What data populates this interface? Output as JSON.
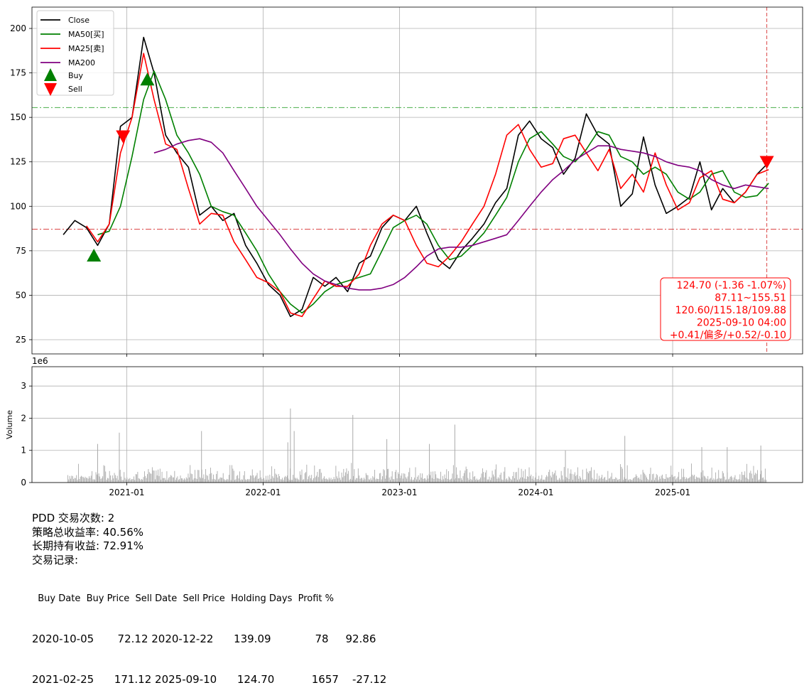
{
  "chart_data": [
    {
      "type": "line",
      "title": "",
      "ylim": [
        17,
        212
      ],
      "yticks": [
        25,
        50,
        75,
        100,
        125,
        150,
        175,
        200
      ],
      "xticks": [
        "2021-01",
        "2022-01",
        "2023-01",
        "2024-01",
        "2025-01"
      ],
      "grid": true,
      "legend_placement": "top-left",
      "legend": [
        "Close",
        "MA50[买]",
        "MA25[卖]",
        "MA200",
        "Buy",
        "Sell"
      ],
      "series": [
        {
          "name": "Close",
          "color": "#000000",
          "x": [
            "2020-07",
            "2020-08",
            "2020-09",
            "2020-10",
            "2020-11",
            "2020-12",
            "2021-01",
            "2021-02",
            "2021-03",
            "2021-04",
            "2021-05",
            "2021-06",
            "2021-07",
            "2021-08",
            "2021-09",
            "2021-10",
            "2021-11",
            "2021-12",
            "2022-01",
            "2022-02",
            "2022-03",
            "2022-04",
            "2022-05",
            "2022-06",
            "2022-07",
            "2022-08",
            "2022-09",
            "2022-10",
            "2022-11",
            "2022-12",
            "2023-01",
            "2023-02",
            "2023-03",
            "2023-04",
            "2023-05",
            "2023-06",
            "2023-07",
            "2023-08",
            "2023-09",
            "2023-10",
            "2023-11",
            "2023-12",
            "2024-01",
            "2024-02",
            "2024-03",
            "2024-04",
            "2024-05",
            "2024-06",
            "2024-07",
            "2024-08",
            "2024-09",
            "2024-10",
            "2024-11",
            "2024-12",
            "2025-01",
            "2025-02",
            "2025-03",
            "2025-04",
            "2025-05",
            "2025-06",
            "2025-07",
            "2025-08",
            "2025-09"
          ],
          "values": [
            84,
            92,
            88,
            78,
            90,
            145,
            150,
            195,
            175,
            140,
            130,
            122,
            95,
            100,
            92,
            96,
            78,
            68,
            56,
            50,
            38,
            42,
            60,
            55,
            60,
            52,
            68,
            72,
            88,
            95,
            92,
            100,
            85,
            70,
            65,
            75,
            82,
            90,
            102,
            110,
            140,
            148,
            138,
            133,
            118,
            127,
            152,
            140,
            135,
            100,
            107,
            139,
            112,
            96,
            100,
            105,
            125,
            98,
            110,
            102,
            108,
            118,
            124.7
          ]
        },
        {
          "name": "MA50[买]",
          "color": "#008000",
          "x": [
            "2020-10",
            "2020-11",
            "2020-12",
            "2021-01",
            "2021-02",
            "2021-03",
            "2021-04",
            "2021-05",
            "2021-06",
            "2021-07",
            "2021-08",
            "2021-09",
            "2021-10",
            "2021-11",
            "2021-12",
            "2022-01",
            "2022-02",
            "2022-03",
            "2022-04",
            "2022-05",
            "2022-06",
            "2022-07",
            "2022-08",
            "2022-09",
            "2022-10",
            "2022-11",
            "2022-12",
            "2023-01",
            "2023-02",
            "2023-03",
            "2023-04",
            "2023-05",
            "2023-06",
            "2023-07",
            "2023-08",
            "2023-09",
            "2023-10",
            "2023-11",
            "2023-12",
            "2024-01",
            "2024-02",
            "2024-03",
            "2024-04",
            "2024-05",
            "2024-06",
            "2024-07",
            "2024-08",
            "2024-09",
            "2024-10",
            "2024-11",
            "2024-12",
            "2025-01",
            "2025-02",
            "2025-03",
            "2025-04",
            "2025-05",
            "2025-06",
            "2025-07",
            "2025-08",
            "2025-09"
          ],
          "values": [
            84,
            86,
            100,
            128,
            160,
            176,
            160,
            140,
            130,
            118,
            100,
            97,
            95,
            85,
            75,
            62,
            52,
            45,
            40,
            45,
            52,
            56,
            58,
            60,
            62,
            75,
            88,
            92,
            95,
            90,
            78,
            70,
            72,
            78,
            85,
            95,
            105,
            125,
            138,
            142,
            135,
            128,
            125,
            132,
            142,
            140,
            128,
            125,
            118,
            122,
            118,
            108,
            104,
            108,
            118,
            120,
            108,
            105,
            106,
            113
          ]
        },
        {
          "name": "MA25[卖]",
          "color": "#ff0000",
          "x": [
            "2020-09",
            "2020-10",
            "2020-11",
            "2020-12",
            "2021-01",
            "2021-02",
            "2021-03",
            "2021-04",
            "2021-05",
            "2021-06",
            "2021-07",
            "2021-08",
            "2021-09",
            "2021-10",
            "2021-11",
            "2021-12",
            "2022-01",
            "2022-02",
            "2022-03",
            "2022-04",
            "2022-05",
            "2022-06",
            "2022-07",
            "2022-08",
            "2022-09",
            "2022-10",
            "2022-11",
            "2022-12",
            "2023-01",
            "2023-02",
            "2023-03",
            "2023-04",
            "2023-05",
            "2023-06",
            "2023-07",
            "2023-08",
            "2023-09",
            "2023-10",
            "2023-11",
            "2023-12",
            "2024-01",
            "2024-02",
            "2024-03",
            "2024-04",
            "2024-05",
            "2024-06",
            "2024-07",
            "2024-08",
            "2024-09",
            "2024-10",
            "2024-11",
            "2024-12",
            "2025-01",
            "2025-02",
            "2025-03",
            "2025-04",
            "2025-05",
            "2025-06",
            "2025-07",
            "2025-08",
            "2025-09"
          ],
          "values": [
            89,
            80,
            90,
            130,
            150,
            186,
            160,
            135,
            132,
            110,
            90,
            96,
            95,
            80,
            70,
            60,
            57,
            52,
            40,
            38,
            48,
            58,
            55,
            55,
            62,
            78,
            90,
            95,
            92,
            78,
            68,
            66,
            72,
            80,
            90,
            100,
            118,
            140,
            146,
            132,
            122,
            124,
            138,
            140,
            130,
            120,
            132,
            110,
            118,
            108,
            130,
            112,
            98,
            102,
            116,
            120,
            104,
            102,
            108,
            118,
            120.6
          ]
        },
        {
          "name": "MA200",
          "color": "#800080",
          "x": [
            "2021-03",
            "2021-04",
            "2021-05",
            "2021-06",
            "2021-07",
            "2021-08",
            "2021-09",
            "2021-10",
            "2021-11",
            "2021-12",
            "2022-01",
            "2022-02",
            "2022-03",
            "2022-04",
            "2022-05",
            "2022-06",
            "2022-07",
            "2022-08",
            "2022-09",
            "2022-10",
            "2022-11",
            "2022-12",
            "2023-01",
            "2023-02",
            "2023-03",
            "2023-04",
            "2023-05",
            "2023-06",
            "2023-07",
            "2023-08",
            "2023-09",
            "2023-10",
            "2023-11",
            "2023-12",
            "2024-01",
            "2024-02",
            "2024-03",
            "2024-04",
            "2024-05",
            "2024-06",
            "2024-07",
            "2024-08",
            "2024-09",
            "2024-10",
            "2024-11",
            "2024-12",
            "2025-01",
            "2025-02",
            "2025-03",
            "2025-04",
            "2025-05",
            "2025-06",
            "2025-07",
            "2025-08",
            "2025-09"
          ],
          "values": [
            130,
            132,
            135,
            137,
            138,
            136,
            130,
            120,
            110,
            100,
            92,
            84,
            76,
            68,
            62,
            58,
            56,
            54,
            53,
            53,
            54,
            56,
            60,
            66,
            72,
            76,
            77,
            77,
            78,
            80,
            82,
            84,
            92,
            100,
            108,
            115,
            120,
            126,
            130,
            134,
            134,
            132,
            131,
            130,
            128,
            125,
            123,
            122,
            120,
            115,
            112,
            110,
            112,
            111,
            110
          ]
        }
      ],
      "hlines": [
        {
          "value": 155.51,
          "color": "#2ca02c",
          "style": "dashdot"
        },
        {
          "value": 87.11,
          "color": "#d62728",
          "style": "dashdot"
        }
      ],
      "vline": {
        "x": "2025-09-10",
        "color": "#d62728",
        "style": "dashed"
      },
      "markers": [
        {
          "type": "Buy",
          "x": "2020-10-05",
          "y": 72.12,
          "color": "#008000"
        },
        {
          "type": "Buy",
          "x": "2021-02-25",
          "y": 171.12,
          "color": "#008000"
        },
        {
          "type": "Sell",
          "x": "2020-12-22",
          "y": 139.09,
          "color": "#ff0000"
        },
        {
          "type": "Sell",
          "x": "2025-09-10",
          "y": 124.7,
          "color": "#ff0000"
        }
      ],
      "annotation": {
        "lines": [
          "124.70 (-1.36 -1.07%)",
          "87.11~155.51",
          "120.60/115.18/109.88",
          "2025-09-10 04:00",
          "+0.41/偏多/+0.52/-0.10"
        ],
        "color": "#ff0000"
      }
    },
    {
      "type": "bar",
      "ylabel": "Volume",
      "offset_label": "1e6",
      "ylim": [
        0,
        3.6
      ],
      "yticks": [
        0,
        1,
        2,
        3
      ],
      "xticks": [
        "2021-01",
        "2022-01",
        "2023-01",
        "2024-01",
        "2025-01"
      ],
      "color": "#aaaaaa",
      "spikes_millions": [
        {
          "x": "2020-10-15",
          "value": 1.2
        },
        {
          "x": "2020-12-12",
          "value": 1.55
        },
        {
          "x": "2021-07-20",
          "value": 1.6
        },
        {
          "x": "2022-03-08",
          "value": 1.25
        },
        {
          "x": "2022-03-15",
          "value": 2.3
        },
        {
          "x": "2022-03-25",
          "value": 1.6
        },
        {
          "x": "2022-08-29",
          "value": 2.1
        },
        {
          "x": "2022-11-28",
          "value": 1.35
        },
        {
          "x": "2023-03-22",
          "value": 1.2
        },
        {
          "x": "2023-05-29",
          "value": 1.8
        },
        {
          "x": "2024-03-20",
          "value": 1.0
        },
        {
          "x": "2024-08-26",
          "value": 1.45
        },
        {
          "x": "2025-03-20",
          "value": 1.1
        },
        {
          "x": "2025-05-27",
          "value": 1.1
        },
        {
          "x": "2025-08-25",
          "value": 1.15
        }
      ]
    }
  ],
  "summary": {
    "title": "PDD 交易次数: 2",
    "strategy_return": "策略总收益率: 40.56%",
    "buy_hold_return": "长期持有收益: 72.91%",
    "records_label": "交易记录:",
    "table_header": "  Buy Date  Buy Price  Sell Date  Sell Price  Holding Days  Profit %",
    "rows": [
      "2020-10-05       72.12 2020-12-22      139.09             78     92.86",
      "2021-02-25      171.12 2025-09-10      124.70           1657    -27.12"
    ]
  }
}
